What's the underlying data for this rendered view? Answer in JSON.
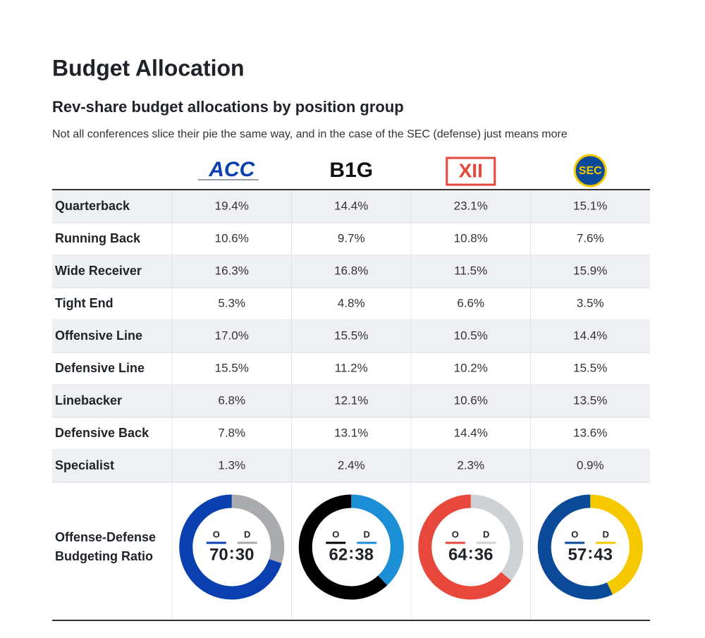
{
  "header": {
    "title": "Budget Allocation",
    "subtitle": "Rev-share budget allocations by position group",
    "note": "Not all conferences slice their pie the same way, and in the case of the SEC (defense) just means more"
  },
  "table": {
    "columns": [
      {
        "label": "ACC",
        "offense_color": "#0a3fb0",
        "defense_color": "#a9abae"
      },
      {
        "label": "B1G",
        "offense_color": "#000000",
        "defense_color": "#1c8fd6"
      },
      {
        "label": "XII",
        "offense_color": "#e8473b",
        "defense_color": "#cfd2d5"
      },
      {
        "label": "SEC",
        "offense_color": "#0b4a99",
        "defense_color": "#f5c800"
      }
    ],
    "rows": [
      {
        "label": "Quarterback",
        "cells": [
          "19.4%",
          "14.4%",
          "23.1%",
          "15.1%"
        ]
      },
      {
        "label": "Running Back",
        "cells": [
          "10.6%",
          "9.7%",
          "10.8%",
          "7.6%"
        ]
      },
      {
        "label": "Wide Receiver",
        "cells": [
          "16.3%",
          "16.8%",
          "11.5%",
          "15.9%"
        ]
      },
      {
        "label": "Tight End",
        "cells": [
          "5.3%",
          "4.8%",
          "6.6%",
          "3.5%"
        ]
      },
      {
        "label": "Offensive Line",
        "cells": [
          "17.0%",
          "15.5%",
          "10.5%",
          "14.4%"
        ]
      },
      {
        "label": "Defensive Line",
        "cells": [
          "15.5%",
          "11.2%",
          "10.2%",
          "15.5%"
        ]
      },
      {
        "label": "Linebacker",
        "cells": [
          "6.8%",
          "12.1%",
          "10.6%",
          "13.5%"
        ]
      },
      {
        "label": "Defensive Back",
        "cells": [
          "7.8%",
          "13.1%",
          "14.4%",
          "13.6%"
        ]
      },
      {
        "label": "Specialist",
        "cells": [
          "1.3%",
          "2.4%",
          "2.3%",
          "0.9%"
        ]
      }
    ],
    "ratio": {
      "label_lines": [
        "Offense-Defense",
        "Budgeting Ratio"
      ],
      "offense_letter": "O",
      "defense_letter": "D",
      "separator": ":",
      "values": [
        {
          "offense": 70,
          "defense": 30
        },
        {
          "offense": 62,
          "defense": 38
        },
        {
          "offense": 64,
          "defense": 36
        },
        {
          "offense": 57,
          "defense": 43
        }
      ]
    }
  }
}
